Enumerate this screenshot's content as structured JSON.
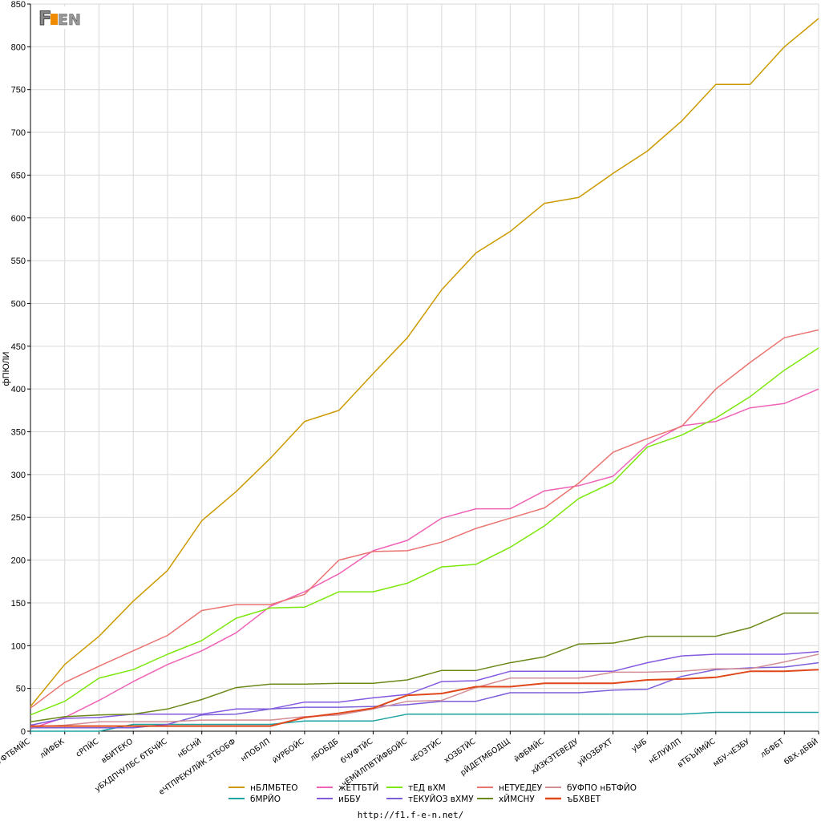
{
  "logo_text": "F1EN",
  "url": "http://f1.f-e-n.net/",
  "chart_data": {
    "type": "line",
    "title": "",
    "xlabel": "",
    "ylabel": "фПЮЛИ",
    "ylim": [
      0,
      850
    ],
    "yticks": [
      0,
      50,
      100,
      150,
      200,
      250,
      300,
      350,
      400,
      450,
      500,
      550,
      600,
      650,
      700,
      750,
      800,
      850
    ],
    "grid": true,
    "legend_position": "bottom",
    "categories": [
      "бЧУФТБМЙС",
      "лЙФБК",
      "сРПЙС",
      "вБИТЕКО",
      "уБХДПЧУЛБС бТБЧЙС",
      "нБСНЙ",
      "еЧТПРЕКУЛЙК ЗТБОБФ",
      "нПОБЛП",
      "йУРБОЙС",
      "лБОБДБ",
      "бЧУФТЙС",
      "чЕМЙЛПВТЙФБОЙС",
      "чЕОЗТЙС",
      "хОЗБТЙС",
      "рЙДЕТМБОДЩ",
      "йФБМЙС",
      "хЙЗКЗТЕВЕДУ",
      "уЙОЗБРХТ",
      "уЫБ",
      "нЕЛУЙЛП",
      "вТБЪЙМЙС",
      "мБУ-чЕЗБУ",
      "лБФБТ",
      "бВХ-дБВЙ"
    ],
    "series": [
      {
        "name": "нБЛМБТЕО",
        "color": "#cc9a00",
        "values": [
          29,
          78,
          111,
          152,
          188,
          246,
          280,
          319,
          362,
          375,
          418,
          460,
          516,
          559,
          584,
          617,
          624,
          652,
          678,
          713,
          756,
          756,
          800,
          833
        ]
      },
      {
        "name": "бМРЙО",
        "color": "#1ea3a3",
        "values": [
          0,
          0,
          0,
          8,
          8,
          8,
          8,
          8,
          12,
          12,
          12,
          20,
          20,
          20,
          20,
          20,
          20,
          20,
          20,
          20,
          22,
          22,
          22,
          22
        ]
      },
      {
        "name": "жЕТТБТЙ",
        "color": "#ef62b6",
        "values": [
          3,
          16,
          36,
          58,
          78,
          94,
          115,
          146,
          163,
          184,
          211,
          223,
          249,
          260,
          260,
          281,
          287,
          298,
          335,
          357,
          362,
          378,
          383,
          400
        ]
      },
      {
        "name": "иББУ",
        "color": "#8459e0",
        "values": [
          7,
          15,
          16,
          20,
          20,
          20,
          26,
          26,
          34,
          34,
          39,
          43,
          58,
          59,
          70,
          70,
          70,
          70,
          80,
          88,
          90,
          90,
          90,
          93
        ]
      },
      {
        "name": "тЕД вХМ",
        "color": "#7ce70c",
        "values": [
          19,
          35,
          62,
          72,
          90,
          106,
          132,
          144,
          145,
          163,
          163,
          173,
          192,
          195,
          215,
          240,
          272,
          291,
          332,
          346,
          366,
          391,
          422,
          448
        ]
      },
      {
        "name": "тЕКУЙОЗ вХМУ",
        "color": "#7c5ed8",
        "values": [
          4,
          4,
          4,
          4,
          8,
          19,
          20,
          26,
          28,
          28,
          29,
          31,
          35,
          35,
          45,
          45,
          45,
          48,
          49,
          64,
          72,
          74,
          75,
          80
        ]
      },
      {
        "name": "нЕТУЕДЕУ",
        "color": "#eb7370",
        "values": [
          27,
          57,
          76,
          94,
          112,
          141,
          148,
          148,
          160,
          200,
          210,
          211,
          221,
          237,
          249,
          261,
          290,
          326,
          342,
          356,
          400,
          431,
          460,
          469
        ]
      },
      {
        "name": "хЙМСНУ",
        "color": "#6b8919",
        "values": [
          11,
          17,
          19,
          20,
          26,
          37,
          51,
          55,
          55,
          56,
          56,
          60,
          71,
          71,
          80,
          87,
          102,
          103,
          111,
          111,
          111,
          121,
          138,
          138
        ]
      },
      {
        "name": "бУФПО нБТФЙО",
        "color": "#d28d96",
        "values": [
          5,
          7,
          11,
          11,
          11,
          13,
          13,
          13,
          17,
          19,
          26,
          35,
          36,
          51,
          62,
          62,
          62,
          69,
          69,
          70,
          73,
          73,
          81,
          90
        ]
      },
      {
        "name": "ъБХВЕТ",
        "color": "#e0471a",
        "values": [
          6,
          6,
          6,
          6,
          6,
          6,
          6,
          6,
          16,
          21,
          27,
          42,
          44,
          52,
          52,
          56,
          56,
          56,
          60,
          61,
          63,
          70,
          70,
          72
        ]
      }
    ]
  }
}
